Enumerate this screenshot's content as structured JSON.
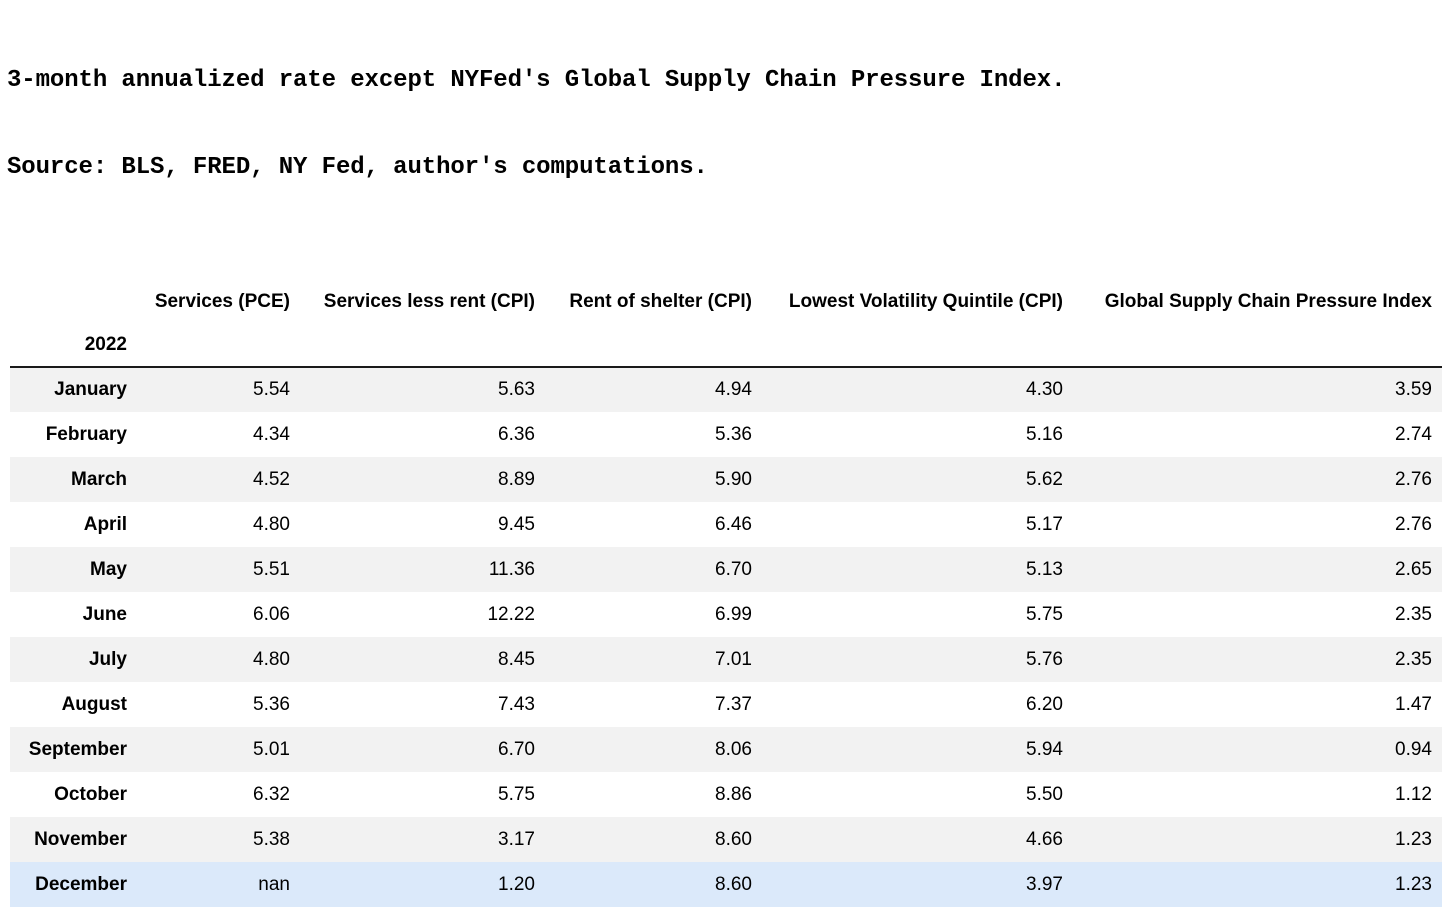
{
  "note": {
    "line1": "3-month annualized rate except NYFed's Global Supply Chain Pressure Index.",
    "line2": "Source: BLS, FRED, NY Fed, author's computations."
  },
  "chart_data": {
    "type": "table",
    "index_label": "2022",
    "columns": [
      "Services (PCE)",
      "Services less rent (CPI)",
      "Rent of shelter (CPI)",
      "Lowest Volatility Quintile (CPI)",
      "Global Supply Chain Pressure Index"
    ],
    "rows": [
      {
        "month": "January",
        "values": [
          "5.54",
          "5.63",
          "4.94",
          "4.30",
          "3.59"
        ]
      },
      {
        "month": "February",
        "values": [
          "4.34",
          "6.36",
          "5.36",
          "5.16",
          "2.74"
        ]
      },
      {
        "month": "March",
        "values": [
          "4.52",
          "8.89",
          "5.90",
          "5.62",
          "2.76"
        ]
      },
      {
        "month": "April",
        "values": [
          "4.80",
          "9.45",
          "6.46",
          "5.17",
          "2.76"
        ]
      },
      {
        "month": "May",
        "values": [
          "5.51",
          "11.36",
          "6.70",
          "5.13",
          "2.65"
        ]
      },
      {
        "month": "June",
        "values": [
          "6.06",
          "12.22",
          "6.99",
          "5.75",
          "2.35"
        ]
      },
      {
        "month": "July",
        "values": [
          "4.80",
          "8.45",
          "7.01",
          "5.76",
          "2.35"
        ]
      },
      {
        "month": "August",
        "values": [
          "5.36",
          "7.43",
          "7.37",
          "6.20",
          "1.47"
        ]
      },
      {
        "month": "September",
        "values": [
          "5.01",
          "6.70",
          "8.06",
          "5.94",
          "0.94"
        ]
      },
      {
        "month": "October",
        "values": [
          "6.32",
          "5.75",
          "8.86",
          "5.50",
          "1.12"
        ]
      },
      {
        "month": "November",
        "values": [
          "5.38",
          "3.17",
          "8.60",
          "4.66",
          "1.23"
        ]
      },
      {
        "month": "December",
        "values": [
          "nan",
          "1.20",
          "8.60",
          "3.97",
          "1.23"
        ]
      }
    ],
    "highlighted_row": "December",
    "layout": {
      "striped_rows": "odd",
      "value_alignment": "right"
    }
  },
  "colors": {
    "stripe": "#f2f2f2",
    "highlight": "#dbe9fa",
    "header_border": "#1a1a1a",
    "text": "#000000"
  }
}
